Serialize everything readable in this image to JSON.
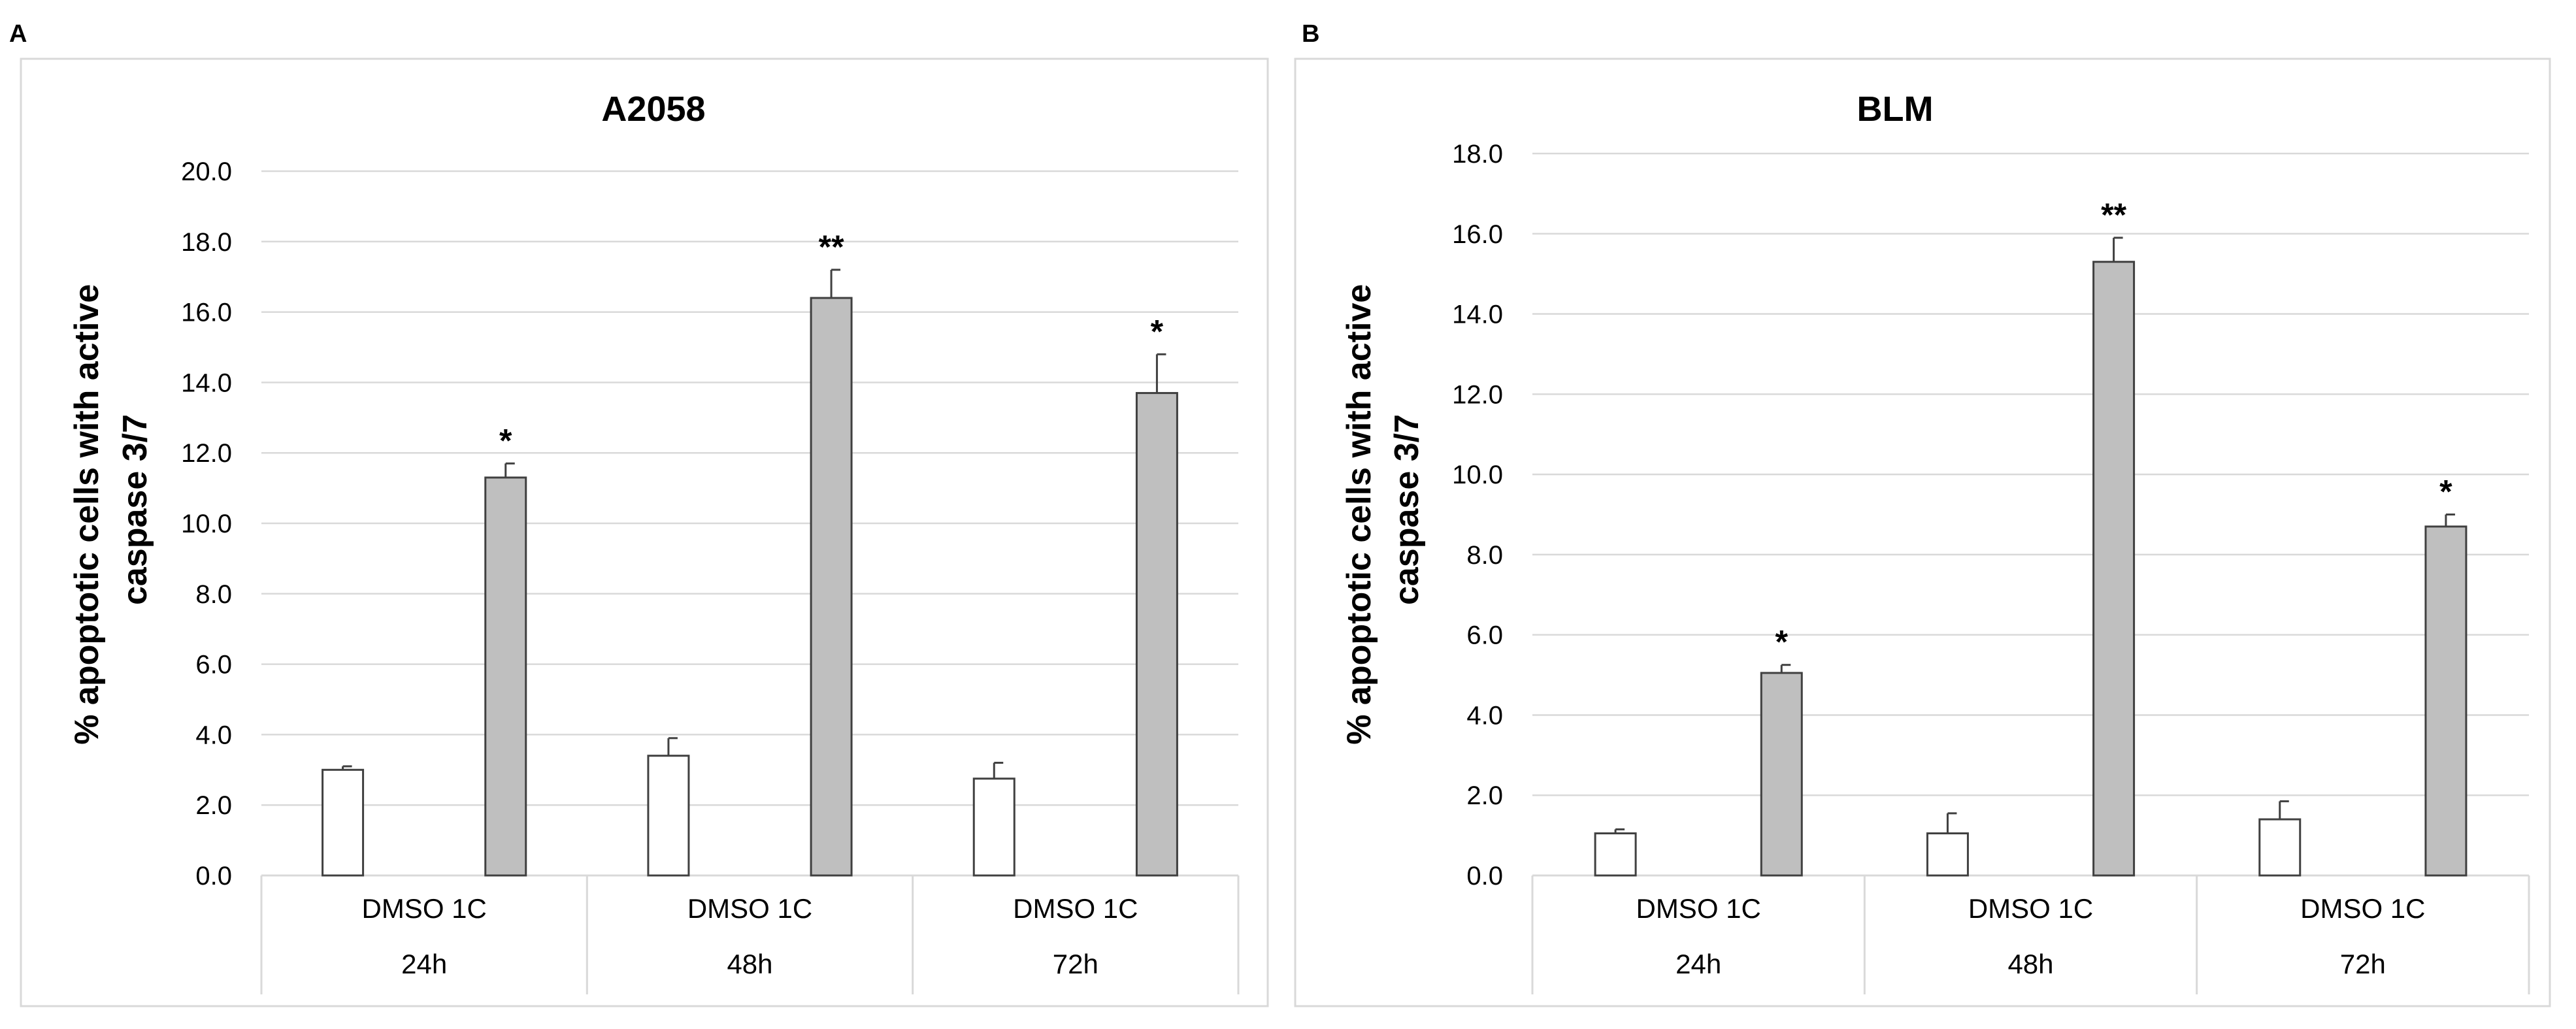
{
  "panels": [
    {
      "letter": "A",
      "title": "A2058"
    },
    {
      "letter": "B",
      "title": "BLM"
    }
  ],
  "chart_data": [
    {
      "type": "bar",
      "title": "A2058",
      "ylabel_lines": [
        "% apoptotic cells with active",
        "caspase 3/7"
      ],
      "ylim": [
        0,
        20
      ],
      "ystep": 2,
      "ytick_labels": [
        "0.0",
        "2.0",
        "4.0",
        "6.0",
        "8.0",
        "10.0",
        "12.0",
        "14.0",
        "16.0",
        "18.0",
        "20.0"
      ],
      "grid": true,
      "groups": [
        "24h",
        "48h",
        "72h"
      ],
      "group_label": "DMSO 1C",
      "series": [
        {
          "name": "DMSO",
          "color": "#ffffff",
          "values": [
            3.0,
            3.4,
            2.75
          ],
          "errors": [
            0.1,
            0.5,
            0.45
          ],
          "significance": [
            "",
            "",
            ""
          ]
        },
        {
          "name": "1C",
          "color": "#bfbfbf",
          "values": [
            11.3,
            16.4,
            13.7
          ],
          "errors": [
            0.4,
            0.8,
            1.1
          ],
          "significance": [
            "*",
            "**",
            "*"
          ]
        }
      ]
    },
    {
      "type": "bar",
      "title": "BLM",
      "ylabel_lines": [
        "% apoptotic cells with active",
        "caspase 3/7"
      ],
      "ylim": [
        0,
        18
      ],
      "ystep": 2,
      "ytick_labels": [
        "0.0",
        "2.0",
        "4.0",
        "6.0",
        "8.0",
        "10.0",
        "12.0",
        "14.0",
        "16.0",
        "18.0"
      ],
      "grid": true,
      "groups": [
        "24h",
        "48h",
        "72h"
      ],
      "group_label": "DMSO 1C",
      "series": [
        {
          "name": "DMSO",
          "color": "#ffffff",
          "values": [
            1.05,
            1.05,
            1.4
          ],
          "errors": [
            0.1,
            0.5,
            0.45
          ],
          "significance": [
            "",
            "",
            ""
          ]
        },
        {
          "name": "1C",
          "color": "#bfbfbf",
          "values": [
            5.05,
            15.3,
            8.7
          ],
          "errors": [
            0.2,
            0.6,
            0.3
          ],
          "significance": [
            "*",
            "**",
            "*"
          ]
        }
      ]
    }
  ]
}
